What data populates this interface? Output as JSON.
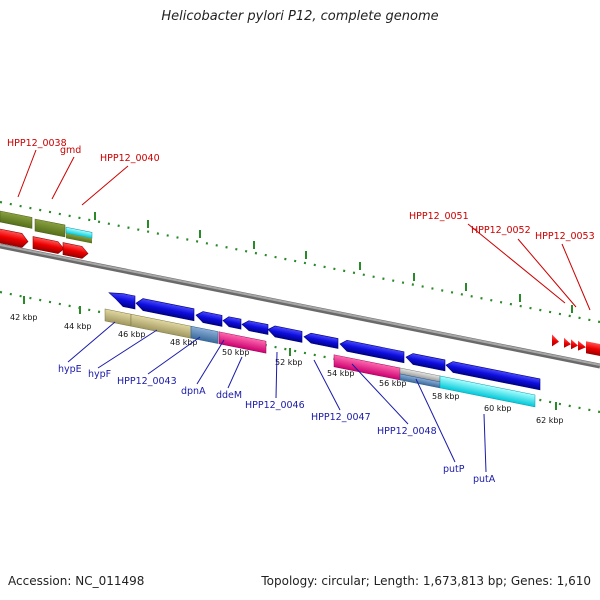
{
  "title": "Helicobacter pylori P12, complete genome",
  "footer": {
    "accession": "Accession: NC_011498",
    "summary": "Topology: circular; Length: 1,673,813 bp; Genes: 1,610"
  },
  "colors": {
    "forward_gene": "#dd0000",
    "reverse_gene": "#1010dd",
    "forward_label": "#cc0000",
    "reverse_label": "#1a1aaa",
    "tick": "#2a8a2a",
    "backbone": "#808080"
  },
  "ticks": [
    "42 kbp",
    "44 kbp",
    "46 kbp",
    "48 kbp",
    "50 kbp",
    "52 kbp",
    "54 kbp",
    "56 kbp",
    "58 kbp",
    "60 kbp",
    "62 kbp"
  ],
  "forward_labels": [
    "HPP12_0038",
    "gmd",
    "HPP12_0040",
    "HPP12_0051",
    "HPP12_0052",
    "HPP12_0053"
  ],
  "reverse_labels": [
    "hypE",
    "hypF",
    "HPP12_0043",
    "dpnA",
    "ddeM",
    "HPP12_0046",
    "HPP12_0047",
    "HPP12_0048",
    "putP",
    "putA"
  ]
}
